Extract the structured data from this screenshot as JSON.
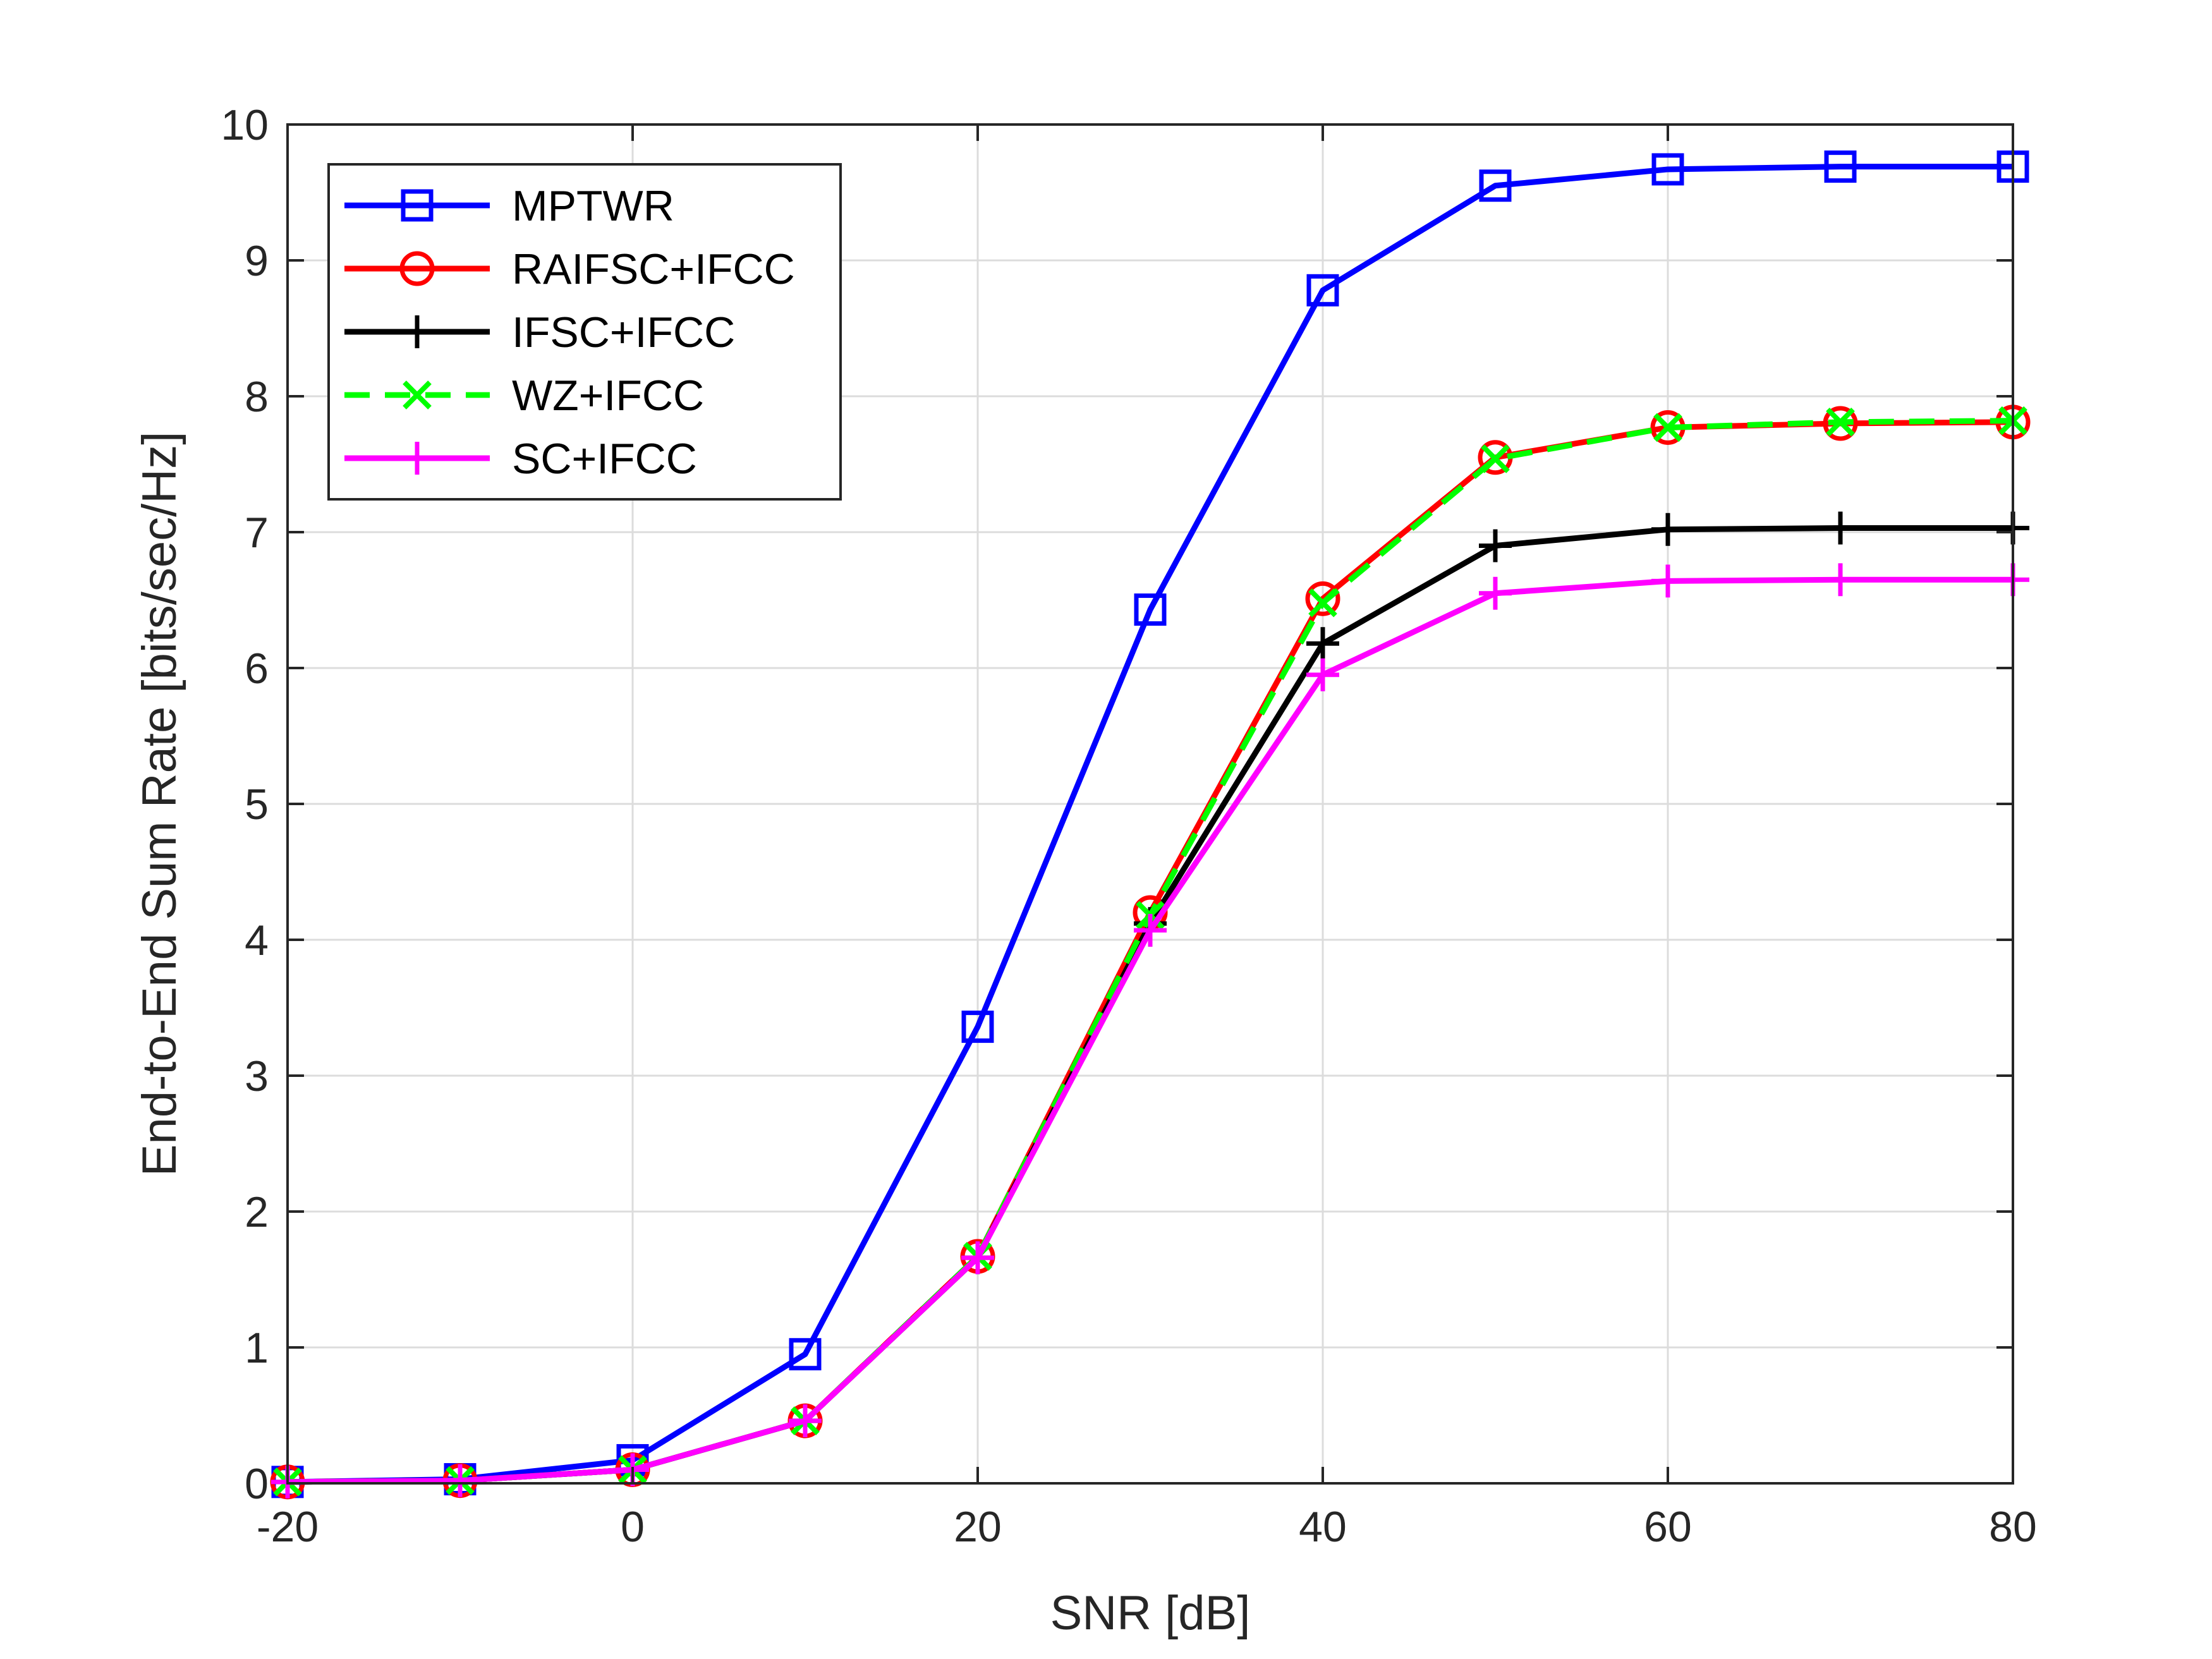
{
  "chart_data": {
    "type": "line",
    "title": "",
    "xlabel": "SNR [dB]",
    "ylabel": "End-to-End Sum Rate [bits/sec/Hz]",
    "xlim": [
      -20,
      80
    ],
    "ylim": [
      0,
      10
    ],
    "grid": true,
    "legend_position": "top-left",
    "x": [
      -20,
      -10,
      0,
      10,
      20,
      30,
      40,
      50,
      60,
      70,
      80
    ],
    "xticks": [
      "-20",
      "0",
      "20",
      "40",
      "60",
      "80"
    ],
    "yticks": [
      "0",
      "1",
      "2",
      "3",
      "4",
      "5",
      "6",
      "7",
      "8",
      "9",
      "10"
    ],
    "series": [
      {
        "name": "MPTWR",
        "color": "#0000ff",
        "marker": "square",
        "dash": "solid",
        "values": [
          0.01,
          0.03,
          0.17,
          0.95,
          3.36,
          6.43,
          8.78,
          9.55,
          9.67,
          9.69,
          9.69
        ]
      },
      {
        "name": "RAIFSC+IFCC",
        "color": "#ff0000",
        "marker": "circle",
        "dash": "solid",
        "values": [
          0.01,
          0.02,
          0.1,
          0.46,
          1.67,
          4.2,
          6.51,
          7.55,
          7.77,
          7.8,
          7.81
        ]
      },
      {
        "name": "IFSC+IFCC",
        "color": "#000000",
        "marker": "plus",
        "dash": "solid",
        "values": [
          0.01,
          0.02,
          0.1,
          0.46,
          1.66,
          4.12,
          6.18,
          6.9,
          7.02,
          7.03,
          7.03
        ]
      },
      {
        "name": "WZ+IFCC",
        "color": "#00ff00",
        "marker": "x",
        "dash": "dashed",
        "values": [
          0.01,
          0.02,
          0.1,
          0.46,
          1.67,
          4.18,
          6.48,
          7.54,
          7.77,
          7.81,
          7.82
        ]
      },
      {
        "name": "SC+IFCC",
        "color": "#ff00ff",
        "marker": "plus",
        "dash": "solid",
        "values": [
          0.01,
          0.02,
          0.1,
          0.46,
          1.66,
          4.07,
          5.95,
          6.55,
          6.64,
          6.65,
          6.65
        ]
      }
    ]
  }
}
